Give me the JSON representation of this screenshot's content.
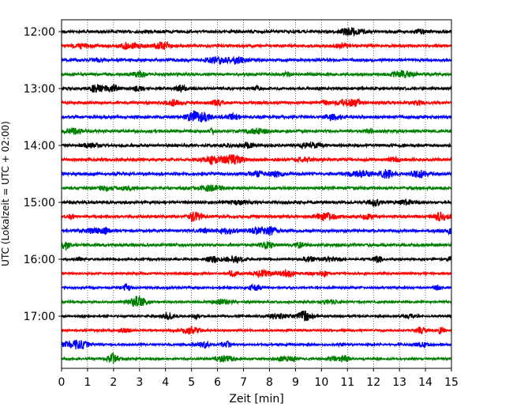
{
  "chart_data": {
    "type": "line",
    "title": "",
    "xlabel": "Zeit  [min]",
    "ylabel": "UTC (Lokalzeit = UTC + 02:00)",
    "xlim": [
      0,
      15
    ],
    "x_ticks": [
      "0",
      "1",
      "2",
      "3",
      "4",
      "5",
      "6",
      "7",
      "8",
      "9",
      "10",
      "11",
      "12",
      "13",
      "14",
      "15"
    ],
    "y_tick_labels": [
      "12:00",
      "13:00",
      "14:00",
      "15:00",
      "16:00",
      "17:00"
    ],
    "grid": "vertical dotted",
    "trace_colors": [
      "#000000",
      "#ff0000",
      "#0000ff",
      "#008000"
    ],
    "series": [
      {
        "start": "12:00",
        "color": "#000000"
      },
      {
        "start": "12:15",
        "color": "#ff0000"
      },
      {
        "start": "12:30",
        "color": "#0000ff"
      },
      {
        "start": "12:45",
        "color": "#008000"
      },
      {
        "start": "13:00",
        "color": "#000000"
      },
      {
        "start": "13:15",
        "color": "#ff0000"
      },
      {
        "start": "13:30",
        "color": "#0000ff"
      },
      {
        "start": "13:45",
        "color": "#008000"
      },
      {
        "start": "14:00",
        "color": "#000000"
      },
      {
        "start": "14:15",
        "color": "#ff0000"
      },
      {
        "start": "14:30",
        "color": "#0000ff"
      },
      {
        "start": "14:45",
        "color": "#008000"
      },
      {
        "start": "15:00",
        "color": "#000000"
      },
      {
        "start": "15:15",
        "color": "#ff0000"
      },
      {
        "start": "15:30",
        "color": "#0000ff"
      },
      {
        "start": "15:45",
        "color": "#008000"
      },
      {
        "start": "16:00",
        "color": "#000000"
      },
      {
        "start": "16:15",
        "color": "#ff0000"
      },
      {
        "start": "16:30",
        "color": "#0000ff"
      },
      {
        "start": "16:45",
        "color": "#008000"
      },
      {
        "start": "17:00",
        "color": "#000000"
      },
      {
        "start": "17:15",
        "color": "#ff0000"
      },
      {
        "start": "17:30",
        "color": "#0000ff"
      },
      {
        "start": "17:45",
        "color": "#008000"
      }
    ]
  }
}
